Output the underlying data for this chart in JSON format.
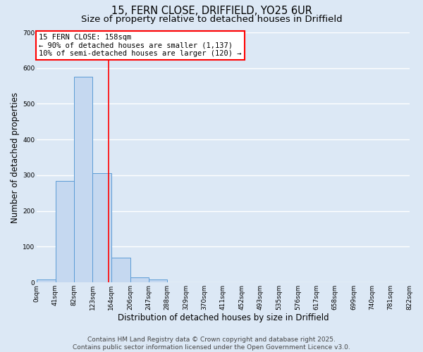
{
  "title_line1": "15, FERN CLOSE, DRIFFIELD, YO25 6UR",
  "title_line2": "Size of property relative to detached houses in Driffield",
  "xlabel": "Distribution of detached houses by size in Driffield",
  "ylabel": "Number of detached properties",
  "bar_edges": [
    0,
    41,
    82,
    123,
    164,
    206,
    247,
    288,
    329,
    370,
    411,
    452,
    493,
    535,
    576,
    617,
    658,
    699,
    740,
    781,
    822
  ],
  "bar_heights": [
    8,
    285,
    575,
    305,
    70,
    15,
    8,
    0,
    0,
    0,
    0,
    0,
    0,
    0,
    0,
    0,
    0,
    0,
    0,
    0
  ],
  "bar_color": "#c5d8f0",
  "bar_edge_color": "#5b9bd5",
  "vline_x": 158,
  "vline_color": "red",
  "annotation_line1": "15 FERN CLOSE: 158sqm",
  "annotation_line2": "← 90% of detached houses are smaller (1,137)",
  "annotation_line3": "10% of semi-detached houses are larger (120) →",
  "ylim": [
    0,
    700
  ],
  "yticks": [
    0,
    100,
    200,
    300,
    400,
    500,
    600,
    700
  ],
  "xlim": [
    0,
    822
  ],
  "xtick_labels": [
    "0sqm",
    "41sqm",
    "82sqm",
    "123sqm",
    "164sqm",
    "206sqm",
    "247sqm",
    "288sqm",
    "329sqm",
    "370sqm",
    "411sqm",
    "452sqm",
    "493sqm",
    "535sqm",
    "576sqm",
    "617sqm",
    "658sqm",
    "699sqm",
    "740sqm",
    "781sqm",
    "822sqm"
  ],
  "xtick_positions": [
    0,
    41,
    82,
    123,
    164,
    206,
    247,
    288,
    329,
    370,
    411,
    452,
    493,
    535,
    576,
    617,
    658,
    699,
    740,
    781,
    822
  ],
  "background_color": "#dce8f5",
  "plot_bg_color": "#dce8f5",
  "grid_color": "white",
  "footer_line1": "Contains HM Land Registry data © Crown copyright and database right 2025.",
  "footer_line2": "Contains public sector information licensed under the Open Government Licence v3.0.",
  "title_fontsize": 10.5,
  "subtitle_fontsize": 9.5,
  "axis_label_fontsize": 8.5,
  "tick_fontsize": 6.5,
  "footer_fontsize": 6.5,
  "annotation_fontsize": 7.5
}
